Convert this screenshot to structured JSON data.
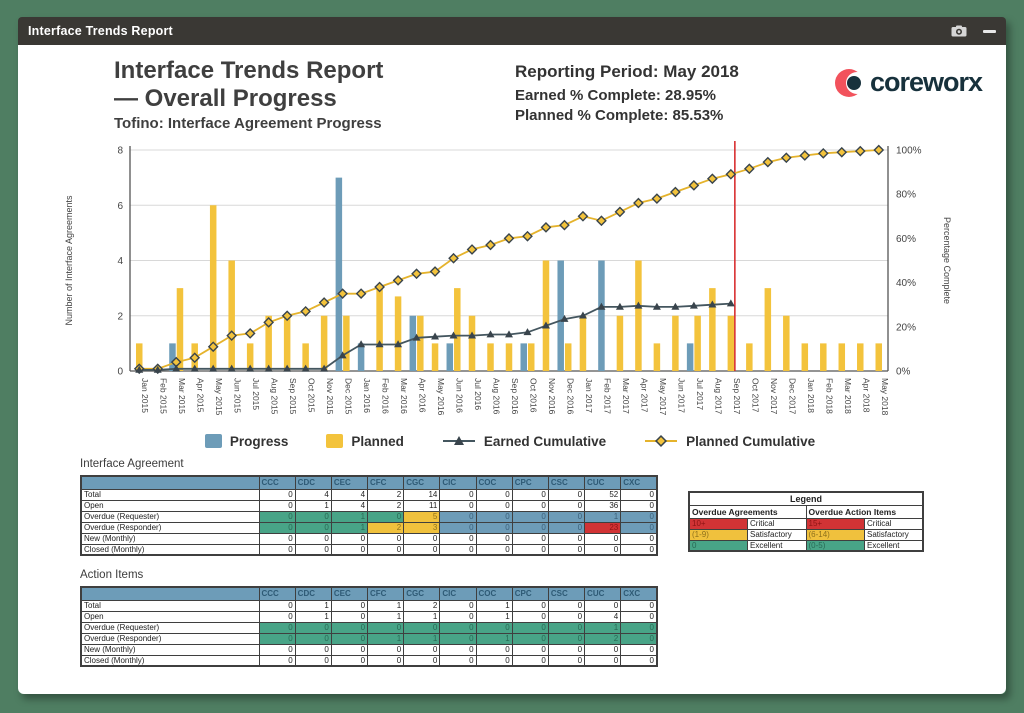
{
  "window": {
    "title": "Interface Trends Report"
  },
  "header": {
    "title_line1": "Interface Trends Report",
    "title_line2": "— Overall Progress",
    "subtitle": "Tofino: Interface Agreement Progress",
    "reporting_period": "Reporting Period: May 2018",
    "earned_pct": "Earned % Complete: 28.95%",
    "planned_pct": "Planned % Complete: 85.53%",
    "logo_text": "coreworx"
  },
  "colors": {
    "progress_bar": "#6d9cb8",
    "planned_bar": "#f3c33c",
    "earned_line": "#44565f",
    "earned_marker": "#39444c",
    "planned_line": "#e5b32c",
    "planned_marker_fill": "#f3c33c",
    "marker_stroke": "#39444c",
    "red_line": "#d83031",
    "grid": "#d8d8d8",
    "axis": "#555555",
    "desktop_green": "#4f7e62"
  },
  "chart_data": {
    "type": "combo-bar-line",
    "categories": [
      "Jan 2015",
      "Feb 2015",
      "Mar 2015",
      "Apr 2015",
      "May 2015",
      "Jun 2015",
      "Jul 2015",
      "Aug 2015",
      "Sep 2015",
      "Oct 2015",
      "Nov 2015",
      "Dec 2015",
      "Jan 2016",
      "Feb 2016",
      "Mar 2016",
      "Apr 2016",
      "May 2016",
      "Jun 2016",
      "Jul 2016",
      "Aug 2016",
      "Sep 2016",
      "Oct 2016",
      "Nov 2016",
      "Dec 2016",
      "Jan 2017",
      "Feb 2017",
      "Mar 2017",
      "Apr 2017",
      "May 2017",
      "Jun 2017",
      "Jul 2017",
      "Aug 2017",
      "Sep 2017",
      "Oct 2017",
      "Nov 2017",
      "Dec 2017",
      "Jan 2018",
      "Feb 2018",
      "Mar 2018",
      "Apr 2018",
      "May 2018"
    ],
    "series": [
      {
        "name": "Progress",
        "type": "bar",
        "axis": "left",
        "values": [
          0,
          0,
          1,
          0,
          0,
          0,
          0,
          0,
          0,
          0,
          0,
          7,
          1,
          0,
          0,
          2,
          0,
          1,
          0,
          0,
          0,
          1,
          0,
          4,
          0,
          4,
          0,
          0,
          0,
          0,
          1,
          0,
          0,
          0,
          0,
          0,
          0,
          0,
          0,
          0,
          0
        ]
      },
      {
        "name": "Planned",
        "type": "bar",
        "axis": "left",
        "values": [
          1,
          0,
          3,
          1,
          6,
          4,
          1,
          2,
          2,
          1,
          2,
          2,
          0,
          3,
          2.7,
          2,
          1,
          3,
          2,
          1,
          1,
          1,
          4,
          1,
          2,
          0,
          2,
          4,
          1,
          2,
          2,
          3,
          2,
          1,
          3,
          2,
          1,
          1,
          1,
          1,
          1
        ]
      },
      {
        "name": "Earned Cumulative",
        "type": "line",
        "axis": "right",
        "values": [
          0.5,
          0.5,
          1,
          1,
          1,
          1,
          1,
          1,
          1,
          1,
          1,
          7,
          12,
          12,
          12,
          15,
          15.5,
          16,
          16,
          16.5,
          16.5,
          17.5,
          20.5,
          23.5,
          25,
          29,
          29,
          29.5,
          29,
          29,
          29.5,
          30,
          30.5,
          null,
          null,
          null,
          null,
          null,
          null,
          null,
          null
        ]
      },
      {
        "name": "Planned Cumulative",
        "type": "line",
        "axis": "right",
        "values": [
          1,
          1,
          4,
          6,
          11,
          16,
          17,
          22,
          25,
          27,
          31,
          35,
          35,
          38,
          41,
          44,
          45,
          51,
          55,
          57,
          60,
          61,
          65,
          66,
          70,
          68,
          72,
          76,
          78,
          81,
          84,
          87,
          89,
          91.5,
          94.5,
          96.5,
          97.5,
          98.5,
          99,
          99.5,
          100
        ]
      }
    ],
    "left_axis": {
      "label": "Number of Interface Agreements",
      "ticks": [
        0,
        2,
        4,
        6,
        8
      ],
      "max": 8
    },
    "right_axis": {
      "label": "Percentage Complete",
      "ticks": [
        "0%",
        "20%",
        "40%",
        "60%",
        "80%",
        "100%"
      ],
      "max": 100
    },
    "reporting_cutoff_line": {
      "category": "Sep 2017"
    },
    "legend": [
      "Progress",
      "Planned",
      "Earned Cumulative",
      "Planned Cumulative"
    ],
    "grid": "horizontal"
  },
  "tables": {
    "interface_agreement": {
      "title": "Interface Agreement",
      "columns": [
        "CCC",
        "CDC",
        "CEC",
        "CFC",
        "CGC",
        "CIC",
        "COC",
        "CPC",
        "CSC",
        "CUC",
        "CXC"
      ],
      "rows": [
        {
          "label": "Total",
          "values": [
            0,
            4,
            4,
            2,
            14,
            0,
            0,
            0,
            0,
            52,
            0
          ],
          "colors": null
        },
        {
          "label": "Open",
          "values": [
            0,
            1,
            4,
            2,
            11,
            0,
            0,
            0,
            0,
            36,
            0
          ],
          "colors": null
        },
        {
          "label": "Overdue (Requester)",
          "values": [
            0,
            0,
            1,
            0,
            5,
            0,
            0,
            0,
            0,
            1,
            0
          ],
          "colors": [
            "g",
            "g",
            "g",
            "g",
            "y",
            "b",
            "b",
            "b",
            "b",
            "b",
            "b"
          ]
        },
        {
          "label": "Overdue (Responder)",
          "values": [
            0,
            0,
            1,
            2,
            3,
            0,
            0,
            0,
            0,
            23,
            0
          ],
          "colors": [
            "g",
            "g",
            "g",
            "y",
            "y",
            "b",
            "b",
            "b",
            "b",
            "r",
            "b"
          ]
        },
        {
          "label": "New (Monthly)",
          "values": [
            0,
            0,
            0,
            0,
            0,
            0,
            0,
            0,
            0,
            0,
            0
          ],
          "colors": null
        },
        {
          "label": "Closed (Monthly)",
          "values": [
            0,
            0,
            0,
            0,
            0,
            0,
            0,
            0,
            0,
            0,
            0
          ],
          "colors": null
        }
      ]
    },
    "action_items": {
      "title": "Action Items",
      "columns": [
        "CCC",
        "CDC",
        "CEC",
        "CFC",
        "CGC",
        "CIC",
        "COC",
        "CPC",
        "CSC",
        "CUC",
        "CXC"
      ],
      "rows": [
        {
          "label": "Total",
          "values": [
            0,
            1,
            0,
            1,
            2,
            0,
            1,
            0,
            0,
            0,
            0
          ],
          "colors": null
        },
        {
          "label": "Open",
          "values": [
            0,
            1,
            0,
            1,
            1,
            0,
            1,
            0,
            0,
            4,
            0
          ],
          "colors": null
        },
        {
          "label": "Overdue (Requester)",
          "values": [
            0,
            0,
            0,
            0,
            0,
            0,
            0,
            0,
            0,
            1,
            0
          ],
          "colors": [
            "g",
            "g",
            "g",
            "g",
            "g",
            "g",
            "g",
            "g",
            "g",
            "g",
            "g"
          ]
        },
        {
          "label": "Overdue (Responder)",
          "values": [
            0,
            0,
            0,
            1,
            1,
            0,
            1,
            0,
            0,
            2,
            0
          ],
          "colors": [
            "g",
            "g",
            "g",
            "g",
            "g",
            "g",
            "g",
            "g",
            "g",
            "g",
            "g"
          ]
        },
        {
          "label": "New (Monthly)",
          "values": [
            0,
            0,
            0,
            0,
            0,
            0,
            0,
            0,
            0,
            0,
            0
          ],
          "colors": null
        },
        {
          "label": "Closed (Monthly)",
          "values": [
            0,
            0,
            0,
            0,
            0,
            0,
            0,
            0,
            0,
            0,
            0
          ],
          "colors": null
        }
      ]
    },
    "threshold_legend": {
      "title": "Legend",
      "group_left": "Overdue Agreements",
      "group_right": "Overdue Action Items",
      "rows": [
        {
          "left_range": "10+",
          "left_label": "Critical",
          "right_range": "15+",
          "right_label": "Critical",
          "color": "r"
        },
        {
          "left_range": "(1-9)",
          "left_label": "Satisfactory",
          "right_range": "(6-14)",
          "right_label": "Satisfactory",
          "color": "y"
        },
        {
          "left_range": "0",
          "left_label": "Excellent",
          "right_range": "(0-5)",
          "right_label": "Excellent",
          "color": "g"
        }
      ]
    }
  }
}
